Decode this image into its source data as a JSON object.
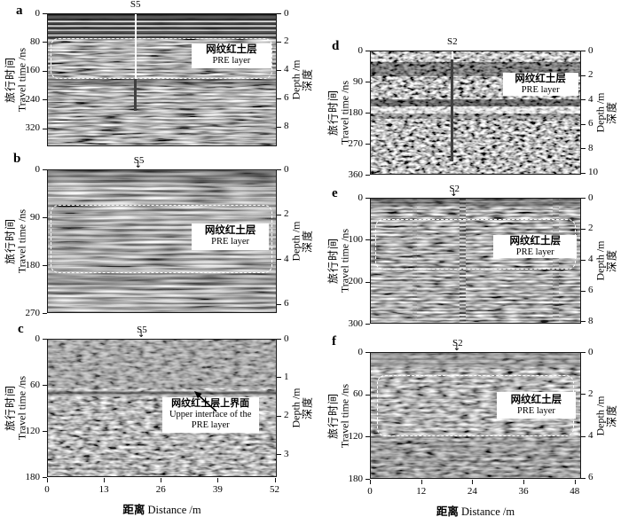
{
  "axis_labels": {
    "travel_time_cn": "旅行时间",
    "travel_time_en": "Travel time /ns",
    "depth_en": "Depth /m",
    "depth_cn": "深度"
  },
  "icons": {
    "down_arrow": "↓"
  },
  "colors": {
    "dashed_outline": "#ffffff",
    "label_box_bg": "#ffffff",
    "text": "#000000",
    "marker_line_light": "#ffffff",
    "marker_line_dark": "#404040"
  },
  "chart_data": {
    "type": "heatmap",
    "subtype": "GPR radargram panels (grayscale echo images, values not point-readable)",
    "panels": [
      {
        "letter": "a",
        "marker": {
          "label": "S5",
          "style": "borehole-line"
        },
        "left_axis": {
          "ticks": [
            0,
            80,
            160,
            240,
            320
          ],
          "max": 370
        },
        "right_axis": {
          "ticks": [
            0,
            2,
            4,
            6,
            8
          ],
          "max": 9.4
        },
        "layer_label": {
          "cn": "网纹红土层",
          "en": "PRE layer"
        },
        "has_dashed_box": true
      },
      {
        "letter": "b",
        "marker": {
          "label": "S5",
          "style": "arrow"
        },
        "left_axis": {
          "ticks": [
            0,
            90,
            180,
            270
          ],
          "max": 270
        },
        "right_axis": {
          "ticks": [
            0,
            2,
            4,
            6
          ],
          "max": 6.4
        },
        "layer_label": {
          "cn": "网纹红土层",
          "en": "PRE layer"
        },
        "has_dashed_box": true
      },
      {
        "letter": "c",
        "marker": {
          "label": "S5",
          "style": "arrow"
        },
        "left_axis": {
          "ticks": [
            0,
            60,
            120,
            180
          ],
          "max": 180
        },
        "right_axis": {
          "ticks": [
            0,
            1,
            2,
            3
          ],
          "max": 3.6
        },
        "annotation": {
          "cn": "网纹红土层上界面",
          "en_lines": [
            "Upper interface of the",
            "PRE layer"
          ]
        },
        "has_dashed_box": false,
        "x_axis": {
          "ticks": [
            0,
            13,
            26,
            39,
            52
          ],
          "max": 52.5,
          "label_cn": "距离",
          "label_en": "Distance /m"
        }
      },
      {
        "letter": "d",
        "marker": {
          "label": "S2",
          "style": "borehole-line"
        },
        "left_axis": {
          "ticks": [
            0,
            90,
            180,
            270,
            360
          ],
          "max": 360
        },
        "right_axis": {
          "ticks": [
            0,
            2,
            4,
            6,
            8,
            10
          ],
          "max": 10.15
        },
        "layer_label": {
          "cn": "网纹红土层",
          "en": "PRE layer"
        },
        "has_dashed_box": false
      },
      {
        "letter": "e",
        "marker": {
          "label": "S2",
          "style": "arrow"
        },
        "left_axis": {
          "ticks": [
            0,
            100,
            200,
            300
          ],
          "max": 300
        },
        "right_axis": {
          "ticks": [
            0,
            2,
            4,
            6,
            8
          ],
          "max": 8.15
        },
        "layer_label": {
          "cn": "网纹红土层",
          "en": "PRE layer"
        },
        "has_dashed_box": true
      },
      {
        "letter": "f",
        "marker": {
          "label": "S2",
          "style": "arrow"
        },
        "left_axis": {
          "ticks": [
            0,
            60,
            120,
            180
          ],
          "max": 180
        },
        "right_axis": {
          "ticks": [
            0,
            2,
            4,
            6
          ],
          "max": 6.05
        },
        "layer_label": {
          "cn": "网纹红土层",
          "en": "PRE layer"
        },
        "has_dashed_box": true,
        "x_axis": {
          "ticks": [
            0,
            12,
            24,
            36,
            48
          ],
          "max": 49.5,
          "label_cn": "距离",
          "label_en": "Distance /m"
        }
      }
    ]
  }
}
